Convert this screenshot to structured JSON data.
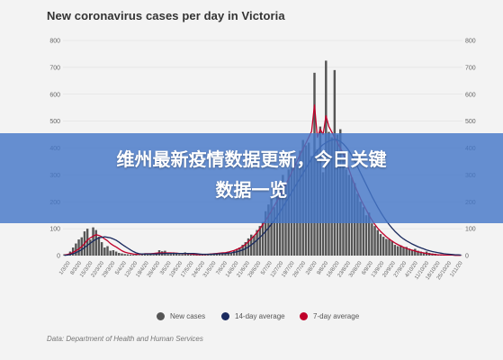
{
  "headline": {
    "line1": "维州最新疫情数据更新，今日关键",
    "line2": "数据一览"
  },
  "chart_data": {
    "type": "bar",
    "title": "New coronavirus cases per day in Victoria",
    "source": "Data: Department of Health and Human Services",
    "ylim": [
      0,
      800
    ],
    "yticks": [
      0,
      100,
      200,
      300,
      400,
      500,
      600,
      700,
      800
    ],
    "grid": true,
    "legend_position": "bottom",
    "x_tick_labels": [
      "1/3/20",
      "8/3/20",
      "15/3/20",
      "22/3/20",
      "29/3/20",
      "5/4/20",
      "12/4/20",
      "19/4/20",
      "26/4/20",
      "3/5/20",
      "10/5/20",
      "17/5/20",
      "24/5/20",
      "31/5/20",
      "7/6/20",
      "14/6/20",
      "21/6/20",
      "28/6/20",
      "5/7/20",
      "12/7/20",
      "19/7/20",
      "26/7/20",
      "2/8/20",
      "9/8/20",
      "16/8/20",
      "23/8/20",
      "30/8/20",
      "6/9/20",
      "13/9/20",
      "20/9/20",
      "27/9/20",
      "4/10/20",
      "11/10/20",
      "18/10/20",
      "25/10/20",
      "1/11/20"
    ],
    "series": [
      {
        "name": "New cases",
        "color": "#555555",
        "values": [
          5,
          4,
          15,
          30,
          45,
          60,
          68,
          90,
          100,
          60,
          105,
          95,
          70,
          50,
          30,
          35,
          18,
          20,
          15,
          10,
          8,
          6,
          5,
          4,
          3,
          3,
          2,
          3,
          8,
          4,
          5,
          3,
          5,
          20,
          16,
          18,
          6,
          6,
          12,
          10,
          5,
          5,
          12,
          8,
          4,
          3,
          4,
          2,
          2,
          3,
          5,
          8,
          6,
          5,
          10,
          12,
          8,
          15,
          12,
          20,
          25,
          30,
          40,
          50,
          64,
          78,
          74,
          95,
          110,
          125,
          165,
          190,
          210,
          180,
          225,
          270,
          300,
          260,
          320,
          330,
          360,
          340,
          390,
          430,
          410,
          420,
          370,
          680,
          395,
          480,
          310,
          725,
          460,
          440,
          690,
          450,
          470,
          360,
          320,
          300,
          290,
          270,
          230,
          200,
          180,
          150,
          160,
          120,
          110,
          95,
          80,
          70,
          62,
          60,
          55,
          40,
          35,
          38,
          30,
          32,
          26,
          22,
          25,
          18,
          15,
          12,
          15,
          10,
          8,
          7,
          5,
          3,
          1,
          2,
          0,
          5,
          3,
          2,
          1
        ]
      },
      {
        "name": "14-day average",
        "color": "#1a2a5e",
        "values": [
          1,
          2,
          4,
          7,
          11,
          16,
          22,
          30,
          38,
          46,
          54,
          61,
          66,
          68,
          70,
          68,
          66,
          62,
          57,
          50,
          42,
          35,
          28,
          21,
          15,
          10,
          7,
          6,
          6,
          6,
          6,
          6,
          6,
          7,
          7,
          8,
          8,
          8,
          8,
          8,
          8,
          8,
          8,
          8,
          8,
          8,
          7,
          6,
          5,
          5,
          5,
          5,
          6,
          6,
          7,
          7,
          8,
          9,
          10,
          12,
          14,
          17,
          21,
          26,
          32,
          40,
          48,
          58,
          68,
          78,
          90,
          103,
          117,
          131,
          146,
          162,
          180,
          198,
          216,
          234,
          252,
          270,
          288,
          306,
          324,
          342,
          360,
          376,
          390,
          403,
          413,
          420,
          426,
          430,
          432,
          430,
          425,
          416,
          404,
          390,
          372,
          352,
          330,
          308,
          286,
          264,
          242,
          220,
          200,
          180,
          162,
          145,
          129,
          115,
          102,
          90,
          80,
          70,
          62,
          55,
          49,
          43,
          38,
          33,
          29,
          25,
          21,
          18,
          15,
          13,
          11,
          9,
          7,
          6,
          5,
          4,
          3,
          3,
          2
        ]
      },
      {
        "name": "7-day average",
        "color": "#c0002a",
        "values": [
          2,
          4,
          7,
          12,
          18,
          25,
          33,
          45,
          58,
          66,
          72,
          78,
          75,
          70,
          62,
          55,
          45,
          38,
          32,
          25,
          18,
          13,
          10,
          8,
          6,
          5,
          5,
          5,
          7,
          7,
          7,
          8,
          9,
          10,
          10,
          10,
          10,
          10,
          9,
          9,
          8,
          8,
          7,
          7,
          6,
          5,
          4,
          4,
          4,
          4,
          5,
          6,
          7,
          8,
          9,
          10,
          11,
          13,
          16,
          19,
          23,
          28,
          34,
          42,
          52,
          62,
          74,
          86,
          100,
          115,
          130,
          148,
          166,
          185,
          203,
          222,
          243,
          264,
          286,
          308,
          330,
          352,
          376,
          398,
          418,
          440,
          462,
          560,
          440,
          470,
          450,
          520,
          480,
          460,
          440,
          420,
          400,
          380,
          350,
          320,
          290,
          262,
          236,
          212,
          190,
          170,
          150,
          132,
          116,
          102,
          90,
          80,
          70,
          62,
          54,
          47,
          41,
          36,
          31,
          27,
          23,
          20,
          17,
          14,
          12,
          10,
          8,
          6,
          5,
          4,
          3,
          3,
          2,
          2,
          2,
          2,
          1,
          1,
          1
        ]
      }
    ]
  }
}
